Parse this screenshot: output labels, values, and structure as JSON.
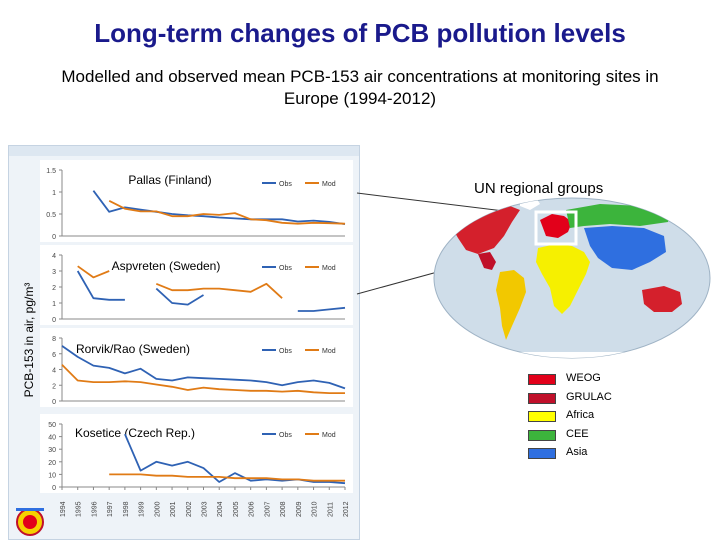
{
  "title": "Long-term changes of PCB pollution levels",
  "subtitle": "Modelled and observed mean PCB-153 air concentrations at monitoring sites in Europe (1994-2012)",
  "ylabel": "PCB-153 in air, pg/m³",
  "colors": {
    "obs": "#2f62b4",
    "mod": "#e07b16",
    "title": "#1a1a8c"
  },
  "chart_data": [
    {
      "type": "line",
      "title": "Pallas (Finland)",
      "x": [
        1994,
        1995,
        1996,
        1997,
        1998,
        1999,
        2000,
        2001,
        2002,
        2003,
        2004,
        2005,
        2006,
        2007,
        2008,
        2009,
        2010,
        2011,
        2012
      ],
      "ylim": [
        0,
        1.5
      ],
      "yticks": [
        "0",
        "0.5",
        "1",
        "1.5"
      ],
      "legend": [
        "Obs",
        "Mod"
      ],
      "series": [
        {
          "name": "Obs",
          "values": [
            null,
            null,
            1.03,
            0.55,
            0.65,
            0.6,
            0.55,
            0.5,
            0.47,
            0.45,
            0.42,
            0.4,
            0.38,
            0.38,
            0.38,
            0.33,
            0.35,
            0.32,
            0.27
          ]
        },
        {
          "name": "Mod",
          "values": [
            null,
            null,
            null,
            0.8,
            0.62,
            0.56,
            0.56,
            0.45,
            0.45,
            0.5,
            0.48,
            0.52,
            0.38,
            0.36,
            0.3,
            0.28,
            0.3,
            0.29,
            0.28
          ]
        }
      ]
    },
    {
      "type": "line",
      "title": "Aspvreten (Sweden)",
      "x": [
        1994,
        1995,
        1996,
        1997,
        1998,
        1999,
        2000,
        2001,
        2002,
        2003,
        2004,
        2005,
        2006,
        2007,
        2008,
        2009,
        2010,
        2011,
        2012
      ],
      "ylim": [
        0,
        4
      ],
      "yticks": [
        "0",
        "1",
        "2",
        "3",
        "4"
      ],
      "legend": [
        "Obs",
        "Mod"
      ],
      "series": [
        {
          "name": "Obs",
          "values": [
            null,
            3.0,
            1.3,
            1.2,
            1.2,
            null,
            1.9,
            1.0,
            0.9,
            1.5,
            null,
            null,
            null,
            null,
            null,
            0.5,
            0.5,
            0.6,
            0.7
          ]
        },
        {
          "name": "Mod",
          "values": [
            null,
            3.3,
            2.6,
            3.0,
            null,
            null,
            2.2,
            1.8,
            1.8,
            1.9,
            1.9,
            1.8,
            1.7,
            2.2,
            1.3,
            null,
            null,
            null,
            null
          ]
        }
      ]
    },
    {
      "type": "line",
      "title": "Rorvik/Rao (Sweden)",
      "x": [
        1994,
        1995,
        1996,
        1997,
        1998,
        1999,
        2000,
        2001,
        2002,
        2003,
        2004,
        2005,
        2006,
        2007,
        2008,
        2009,
        2010,
        2011,
        2012
      ],
      "ylim": [
        0,
        8
      ],
      "yticks": [
        "0",
        "2",
        "4",
        "6",
        "8"
      ],
      "legend": [
        "Obs",
        "Mod"
      ],
      "series": [
        {
          "name": "Obs",
          "values": [
            7.0,
            5.6,
            4.5,
            4.2,
            3.5,
            4.1,
            2.8,
            2.6,
            3.0,
            2.9,
            2.8,
            2.7,
            2.6,
            2.4,
            2.0,
            2.4,
            2.6,
            2.3,
            1.6
          ]
        },
        {
          "name": "Mod",
          "values": [
            4.6,
            2.6,
            2.4,
            2.4,
            2.5,
            2.4,
            2.1,
            1.8,
            1.4,
            1.7,
            1.5,
            1.4,
            1.3,
            1.3,
            1.2,
            1.3,
            1.1,
            1.0,
            1.0
          ]
        }
      ]
    },
    {
      "type": "line",
      "title": "Kosetice (Czech Rep.)",
      "x": [
        1994,
        1995,
        1996,
        1997,
        1998,
        1999,
        2000,
        2001,
        2002,
        2003,
        2004,
        2005,
        2006,
        2007,
        2008,
        2009,
        2010,
        2011,
        2012
      ],
      "xticks": [
        "1994",
        "1995",
        "1996",
        "1997",
        "1998",
        "1999",
        "2000",
        "2001",
        "2002",
        "2003",
        "2004",
        "2005",
        "2006",
        "2007",
        "2008",
        "2009",
        "2010",
        "2011",
        "2012"
      ],
      "ylim": [
        0,
        50
      ],
      "yticks": [
        "0",
        "10",
        "20",
        "30",
        "40",
        "50"
      ],
      "legend": [
        "Obs",
        "Mod"
      ],
      "series": [
        {
          "name": "Obs",
          "values": [
            null,
            null,
            null,
            null,
            42,
            13,
            20,
            17,
            20,
            15,
            4,
            11,
            5,
            6,
            5,
            6,
            4,
            4,
            3
          ]
        },
        {
          "name": "Mod",
          "values": [
            null,
            null,
            null,
            10,
            10,
            10,
            9,
            9,
            8,
            8,
            8,
            7,
            7,
            7,
            6,
            6,
            5,
            5,
            5
          ]
        }
      ]
    }
  ],
  "map": {
    "title": "UN regional groups",
    "regions": [
      {
        "name": "WEOG",
        "color": "#e2001a"
      },
      {
        "name": "GRULAC",
        "color": "#c0102a"
      },
      {
        "name": "Africa",
        "color": "#ffff00"
      },
      {
        "name": "CEE",
        "color": "#3cb43c"
      },
      {
        "name": "Asia",
        "color": "#2f6fe0"
      }
    ]
  }
}
